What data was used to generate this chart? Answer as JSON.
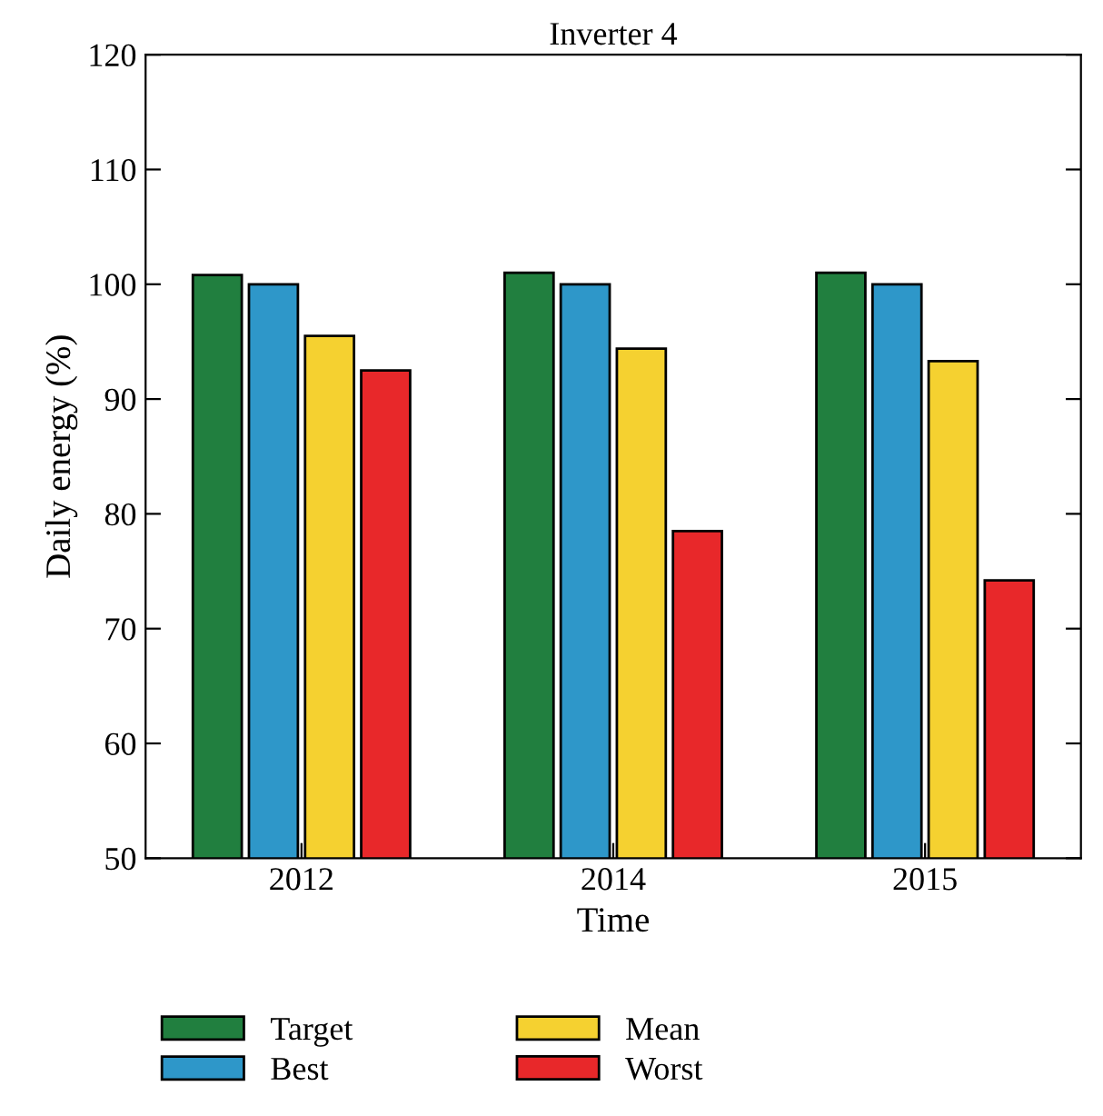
{
  "chart_data": {
    "type": "bar",
    "title": "Inverter 4",
    "xlabel": "Time",
    "ylabel": "Daily energy (%)",
    "categories": [
      "2012",
      "2014",
      "2015"
    ],
    "series": [
      {
        "name": "Target",
        "color": "#217f3f",
        "values": [
          100.8,
          101.0,
          101.0
        ]
      },
      {
        "name": "Best",
        "color": "#2e97c9",
        "values": [
          100.0,
          100.0,
          100.0
        ]
      },
      {
        "name": "Mean",
        "color": "#f5d130",
        "values": [
          95.5,
          94.4,
          93.3
        ]
      },
      {
        "name": "Worst",
        "color": "#e8282a",
        "values": [
          92.5,
          78.5,
          74.2
        ]
      }
    ],
    "ylim": [
      50,
      120
    ],
    "yticks": [
      50,
      60,
      70,
      80,
      90,
      100,
      110,
      120
    ],
    "grid": false,
    "legend": "bottom"
  }
}
